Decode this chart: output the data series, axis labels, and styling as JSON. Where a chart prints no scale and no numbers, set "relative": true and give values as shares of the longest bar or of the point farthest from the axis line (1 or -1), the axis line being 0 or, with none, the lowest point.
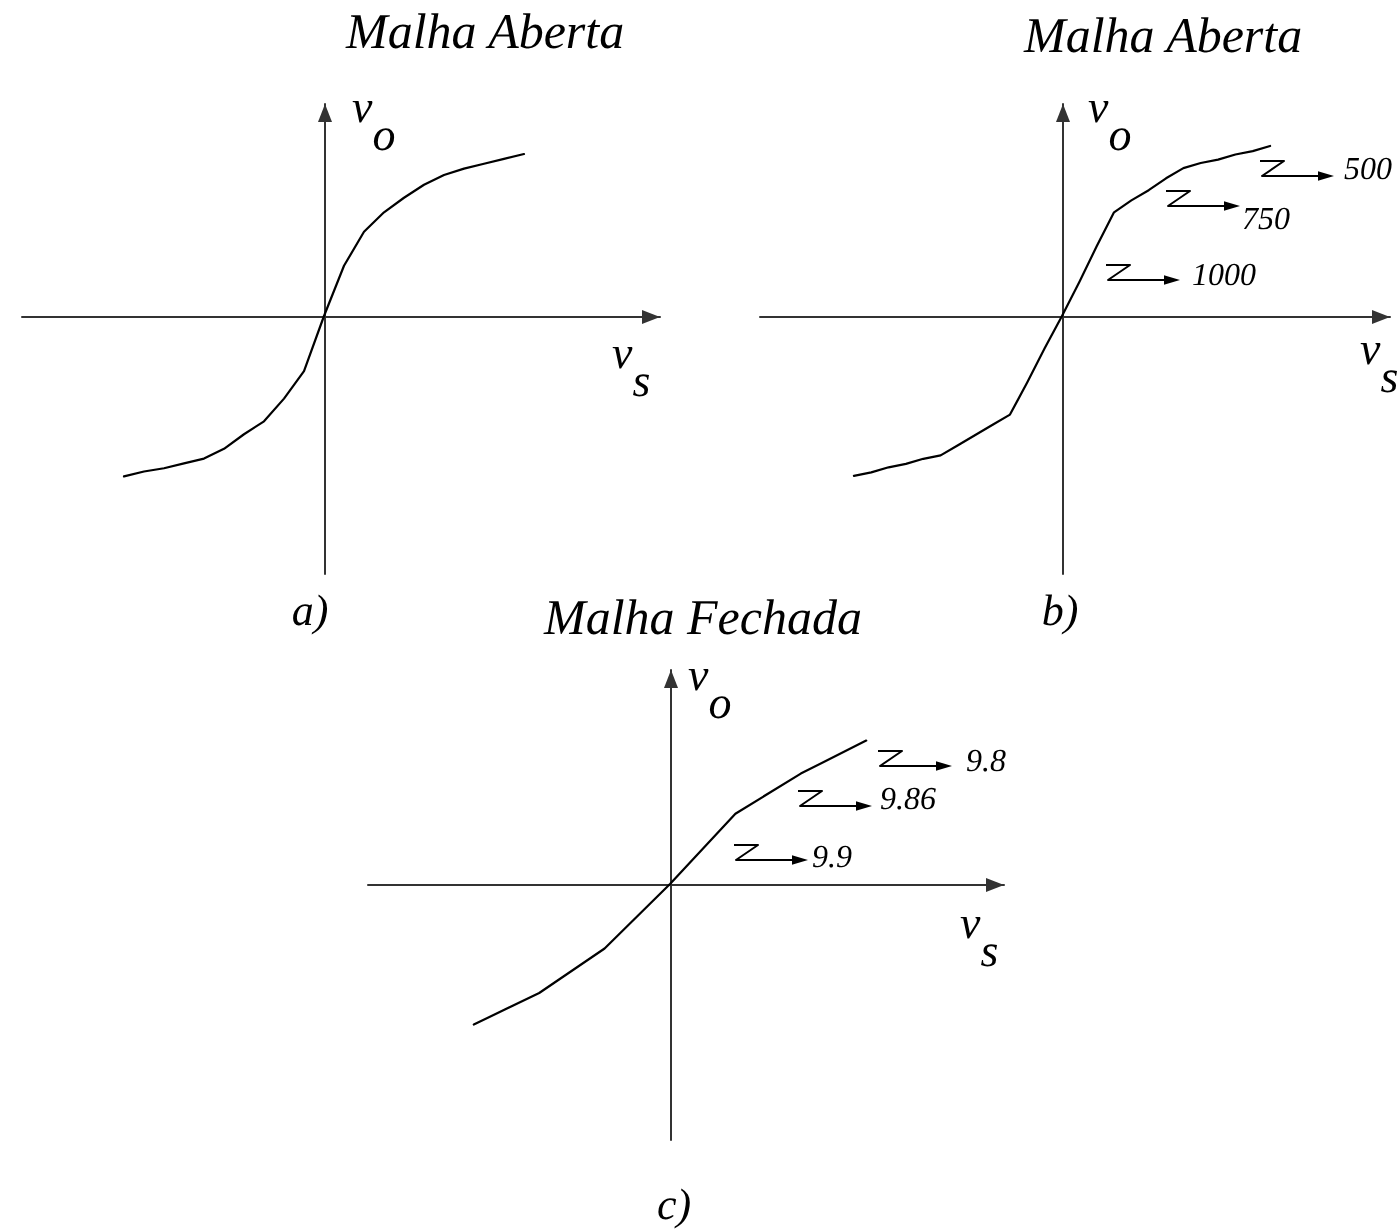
{
  "chart_data": [
    {
      "type": "line",
      "title": "Malha Aberta",
      "xlabel": "v$_{s}$",
      "ylabel": "v$_{o}$",
      "relative": true,
      "color": "#000000",
      "categories": [
        null,
        null,
        null,
        null,
        null,
        null,
        null,
        null,
        null,
        null,
        null,
        null,
        null,
        null,
        null,
        null,
        null,
        null,
        null,
        null,
        null
      ],
      "values": [
        -0.99,
        -0.96,
        -0.94,
        -0.91,
        -0.88,
        -0.82,
        -0.73,
        -0.65,
        -0.51,
        -0.34,
        0,
        0.31,
        0.52,
        0.64,
        0.73,
        0.81,
        0.87,
        0.91,
        0.94,
        0.97,
        1
      ],
      "annotations": [
        "a)"
      ]
    },
    {
      "type": "line",
      "title": "Malha Aberta",
      "xlabel": "v$_{s}$",
      "ylabel": "v$_{o}$",
      "relative": true,
      "color": "#000000",
      "categories": [
        null,
        null,
        null,
        null,
        null,
        null,
        null,
        null,
        null,
        null,
        null,
        null,
        null,
        null,
        null,
        null,
        null,
        null,
        null,
        null,
        null,
        null,
        null,
        null,
        null
      ],
      "values": [
        -0.94,
        -0.92,
        -0.89,
        -0.87,
        -0.84,
        -0.82,
        -0.76,
        -0.7,
        -0.64,
        -0.58,
        -0.39,
        -0.19,
        0,
        0.2,
        0.41,
        0.61,
        0.68,
        0.74,
        0.81,
        0.87,
        0.9,
        0.92,
        0.95,
        0.97,
        1
      ],
      "annotations": [
        "500",
        "750",
        "1000",
        "b)"
      ]
    },
    {
      "type": "line",
      "title": "Malha Fechada",
      "xlabel": "v$_{s}$",
      "ylabel": "v$_{o}$",
      "relative": true,
      "color": "#000000",
      "categories": [
        null,
        null,
        null,
        null,
        null,
        null,
        null
      ],
      "values": [
        -0.98,
        -0.76,
        -0.45,
        0,
        0.49,
        0.77,
        1
      ],
      "annotations": [
        "9.8",
        "9.86",
        "9.9",
        "c)"
      ]
    }
  ]
}
